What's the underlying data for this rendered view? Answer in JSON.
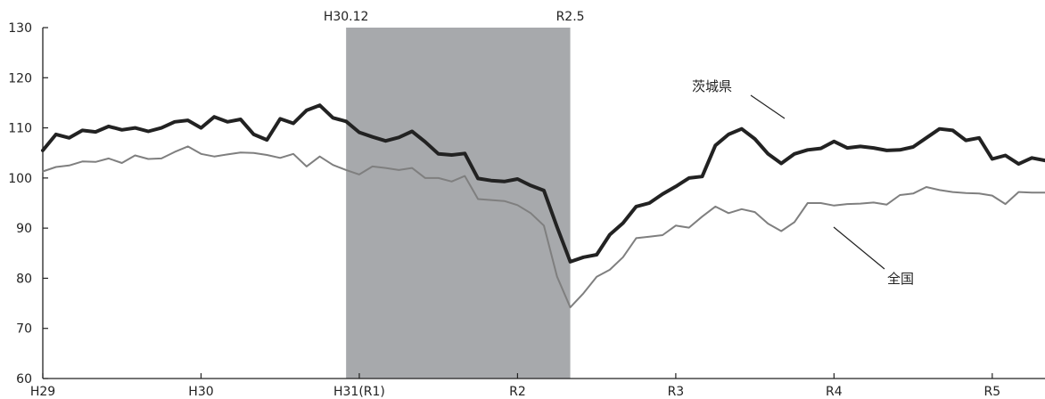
{
  "chart_data": {
    "type": "line",
    "title": "",
    "xlabel": "",
    "ylabel": "",
    "ylim": [
      60,
      130
    ],
    "yticks": [
      60,
      70,
      80,
      90,
      100,
      110,
      120,
      130
    ],
    "xtick_labels": [
      "H29",
      "H30",
      "H31(R1)",
      "R2",
      "R3",
      "R4",
      "R5"
    ],
    "x_start": "2017-01",
    "x_end": "2023-05",
    "grid": false,
    "legend": "none",
    "shaded_region": {
      "start": "2018-12",
      "end": "2020-05",
      "start_label": "H30.12",
      "end_label": "R2.5",
      "color": "#a7a9ac"
    },
    "series": [
      {
        "name": "茨城県",
        "color": "#222222",
        "values": [
          105.5,
          108.7,
          108.0,
          109.5,
          109.2,
          110.3,
          109.6,
          110.0,
          109.3,
          110.0,
          111.2,
          111.5,
          110.0,
          112.2,
          111.2,
          111.7,
          108.7,
          107.6,
          111.8,
          110.9,
          113.5,
          114.5,
          112.0,
          111.3,
          109.1,
          108.2,
          107.4,
          108.1,
          109.3,
          107.2,
          104.8,
          104.6,
          104.9,
          99.9,
          99.5,
          99.3,
          99.8,
          98.5,
          97.5,
          90.2,
          83.3,
          84.2,
          84.7,
          88.7,
          91.0,
          94.3,
          95.0,
          96.8,
          98.3,
          100.0,
          100.3,
          106.5,
          108.7,
          109.8,
          107.8,
          104.8,
          102.9,
          104.8,
          105.6,
          105.9,
          107.3,
          106.0,
          106.3,
          106.0,
          105.5,
          105.6,
          106.2,
          108.0,
          109.8,
          109.5,
          107.5,
          108.0,
          103.8,
          104.5,
          102.8,
          104.0,
          103.5
        ]
      },
      {
        "name": "全国",
        "color": "#7f7f7f",
        "values": [
          101.3,
          102.2,
          102.5,
          103.3,
          103.2,
          103.9,
          103.0,
          104.5,
          103.8,
          103.9,
          105.2,
          106.3,
          104.8,
          104.3,
          104.7,
          105.1,
          105.0,
          104.6,
          104.0,
          104.8,
          102.3,
          104.3,
          102.6,
          101.6,
          100.7,
          102.3,
          102.0,
          101.6,
          102.0,
          100.0,
          100.0,
          99.3,
          100.4,
          95.8,
          95.6,
          95.4,
          94.6,
          93.0,
          90.5,
          80.3,
          74.2,
          77.0,
          80.3,
          81.7,
          84.2,
          88.0,
          88.3,
          88.6,
          90.5,
          90.1,
          92.3,
          94.3,
          93.0,
          93.8,
          93.2,
          90.9,
          89.4,
          91.2,
          95.0,
          95.0,
          94.5,
          94.8,
          94.9,
          95.1,
          94.7,
          96.6,
          96.9,
          98.2,
          97.6,
          97.2,
          97.0,
          96.9,
          96.5,
          94.8,
          97.2,
          97.1,
          97.1
        ]
      }
    ]
  }
}
